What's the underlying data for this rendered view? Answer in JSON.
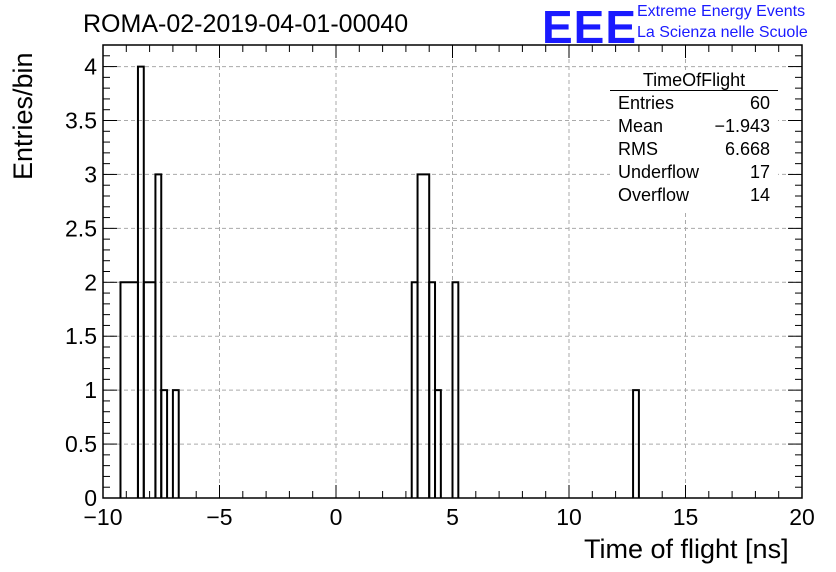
{
  "plot_title": "ROMA-02-2019-04-01-00040",
  "logo": {
    "text": "EEE",
    "line1": "Extreme Energy Events",
    "line2": "La Scienza nelle Scuole",
    "color": "#1a1aff"
  },
  "stats_box": {
    "title": "TimeOfFlight",
    "rows": [
      {
        "key": "Entries",
        "value": "60"
      },
      {
        "key": "Mean",
        "value": "−1.943"
      },
      {
        "key": "RMS",
        "value": "6.668"
      },
      {
        "key": "Underflow",
        "value": "17"
      },
      {
        "key": "Overflow",
        "value": "14"
      }
    ]
  },
  "chart_data": {
    "type": "bar",
    "style": "histogram-step",
    "xlabel": "Time of flight [ns]",
    "ylabel": "Entries/bin",
    "xlim": [
      -10,
      20
    ],
    "ylim": [
      0,
      4.2
    ],
    "bin_width": 0.25,
    "x_ticks": [
      -10,
      -5,
      0,
      5,
      10,
      15,
      20
    ],
    "x_tick_labels": [
      "−10",
      "−5",
      "0",
      "5",
      "10",
      "15",
      "20"
    ],
    "y_ticks": [
      0,
      0.5,
      1,
      1.5,
      2,
      2.5,
      3,
      3.5,
      4
    ],
    "y_tick_labels": [
      "0",
      "0.5",
      "1",
      "1.5",
      "2",
      "2.5",
      "3",
      "3.5",
      "4"
    ],
    "grid": true,
    "bins": [
      {
        "x0": -9.25,
        "x1": -8.5,
        "value": 2
      },
      {
        "x0": -8.5,
        "x1": -8.25,
        "value": 4
      },
      {
        "x0": -8.25,
        "x1": -7.75,
        "value": 2
      },
      {
        "x0": -7.75,
        "x1": -7.5,
        "value": 3
      },
      {
        "x0": -7.5,
        "x1": -7.25,
        "value": 1
      },
      {
        "x0": -7.0,
        "x1": -6.75,
        "value": 1
      },
      {
        "x0": 3.25,
        "x1": 3.5,
        "value": 2
      },
      {
        "x0": 3.5,
        "x1": 4.0,
        "value": 3
      },
      {
        "x0": 4.0,
        "x1": 4.25,
        "value": 2
      },
      {
        "x0": 4.25,
        "x1": 4.5,
        "value": 1
      },
      {
        "x0": 5.0,
        "x1": 5.25,
        "value": 2
      },
      {
        "x0": 12.75,
        "x1": 13.0,
        "value": 1
      }
    ]
  }
}
